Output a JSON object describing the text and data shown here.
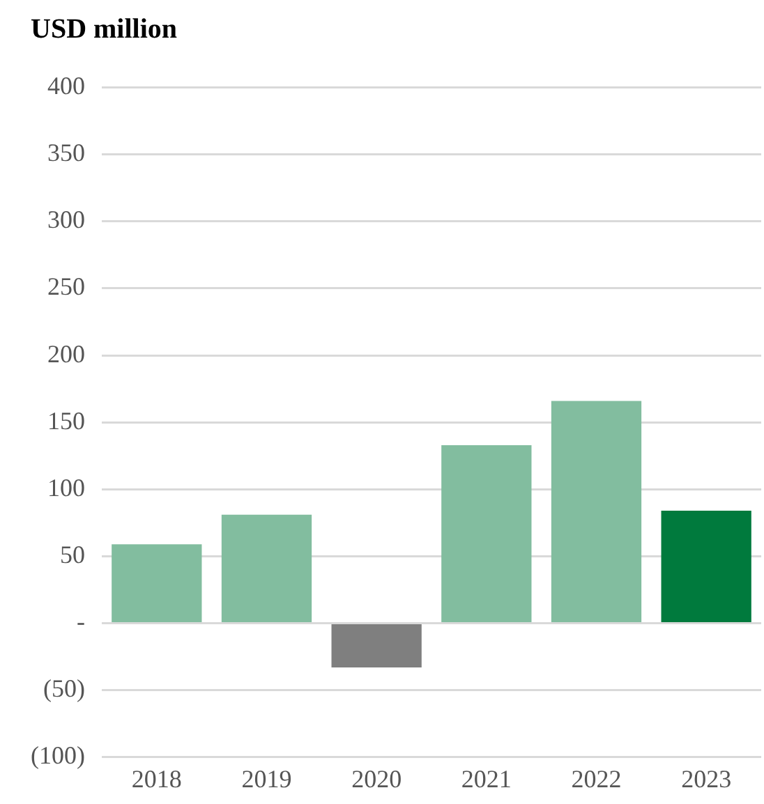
{
  "chart_data": {
    "type": "bar",
    "title": "USD million",
    "categories": [
      "2018",
      "2019",
      "2020",
      "2021",
      "2022",
      "2023"
    ],
    "values": [
      59,
      81,
      -33,
      133,
      166,
      84
    ],
    "colors": [
      "#82bd9f",
      "#82bd9f",
      "#7f7f7f",
      "#82bd9f",
      "#82bd9f",
      "#007a3d"
    ],
    "ylim": [
      -100,
      400
    ],
    "yticks": [
      {
        "value": -100,
        "label": "(100)"
      },
      {
        "value": -50,
        "label": "(50)"
      },
      {
        "value": 0,
        "label": "-"
      },
      50,
      100,
      150,
      200,
      250,
      300,
      350,
      400
    ],
    "grid": "y"
  }
}
